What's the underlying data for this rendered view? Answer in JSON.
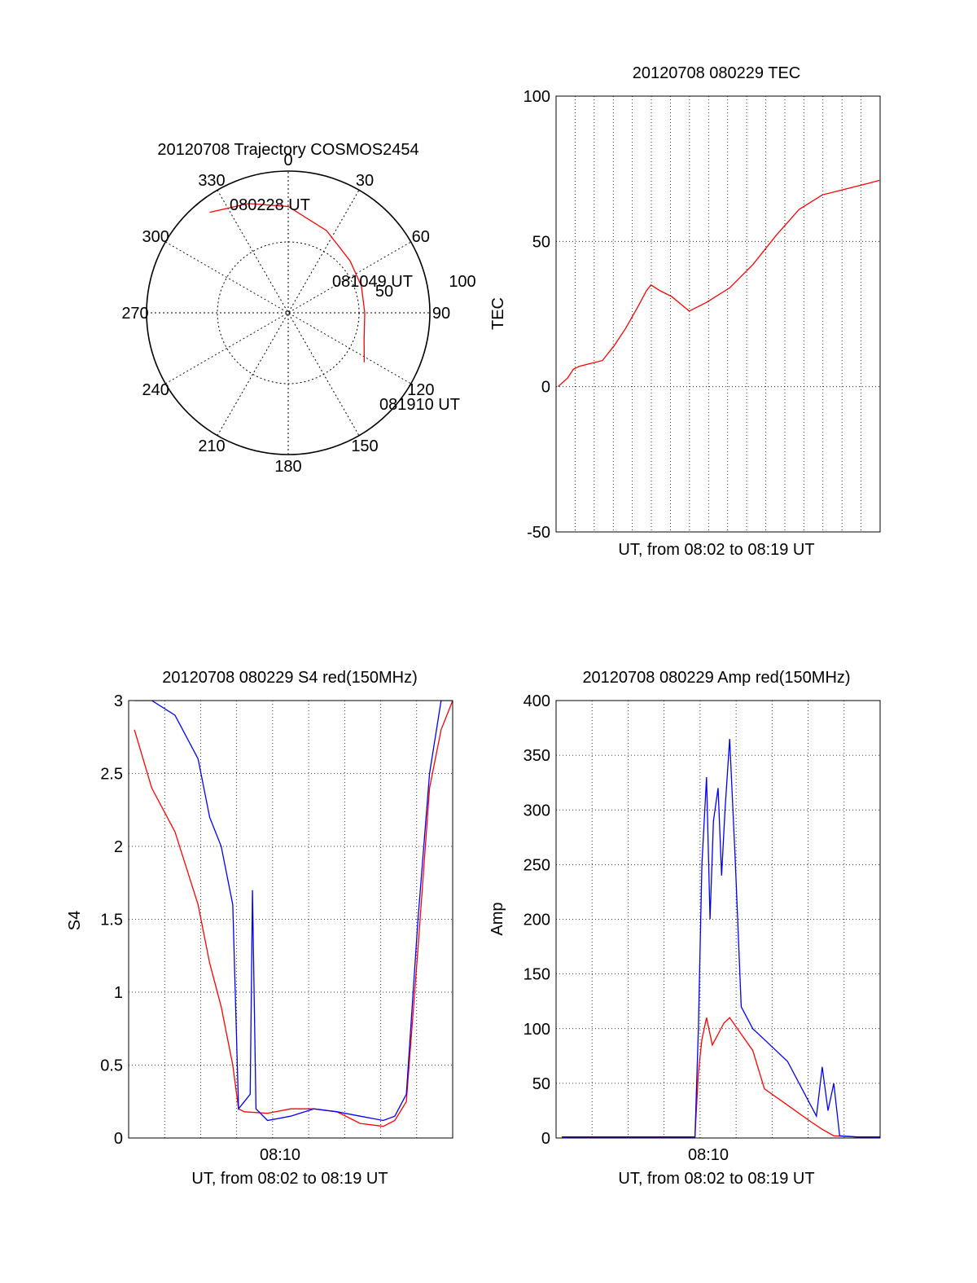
{
  "colors": {
    "red": "#ff0000",
    "blue": "#0000ff",
    "axis": "#000000",
    "grid": "#000000",
    "background": "#ffffff"
  },
  "chart_data": [
    {
      "type": "polar",
      "title": "20120708 Trajectory COSMOS2454",
      "angle_ticks": [
        "0",
        "30",
        "60",
        "90",
        "120",
        "150",
        "180",
        "210",
        "240",
        "270",
        "300",
        "330"
      ],
      "radius_ticks": [
        "50",
        "100"
      ],
      "grid": true,
      "trajectory": {
        "color": "red",
        "points": [
          [
            -38,
            90
          ],
          [
            -20,
            82
          ],
          [
            0,
            75
          ],
          [
            25,
            64
          ],
          [
            50,
            57
          ],
          [
            70,
            55
          ],
          [
            90,
            54
          ],
          [
            110,
            57
          ],
          [
            123,
            64
          ]
        ]
      },
      "annotations": [
        "080228 UT",
        "081049 UT",
        "081910 UT"
      ]
    },
    {
      "type": "line",
      "title": "20120708 080229 TEC",
      "xlabel": "UT, from 08:02 to 08:19 UT",
      "ylabel": "TEC",
      "xlim": [
        8.04,
        8.32
      ],
      "ylim": [
        -50,
        100
      ],
      "yticks": [
        "-50",
        "0",
        "50",
        "100"
      ],
      "grid": true,
      "series": [
        {
          "color": "red",
          "x": [
            8.0417,
            8.05,
            8.055,
            8.06,
            8.07,
            8.08,
            8.09,
            8.1,
            8.11,
            8.118,
            8.122,
            8.13,
            8.14,
            8.155,
            8.17,
            8.19,
            8.21,
            8.23,
            8.25,
            8.27,
            8.29,
            8.31,
            8.3194
          ],
          "y": [
            0,
            3,
            6,
            7,
            8,
            9,
            14,
            20,
            27,
            33,
            35,
            33,
            31,
            26,
            29,
            34,
            42,
            52,
            61,
            66,
            68,
            70,
            71
          ]
        }
      ]
    },
    {
      "type": "line",
      "title": "20120708 080229 S4 red(150MHz)",
      "xlabel": "UT, from 08:02 to 08:19 UT",
      "ylabel": "S4",
      "xlim": [
        8.04,
        8.32
      ],
      "ylim": [
        0,
        3
      ],
      "yticks": [
        "0",
        "0.5",
        "1",
        "1.5",
        "2",
        "2.5",
        "3"
      ],
      "xticks": [
        "08:10"
      ],
      "grid": true,
      "series": [
        {
          "color": "red",
          "x": [
            8.045,
            8.06,
            8.08,
            8.1,
            8.11,
            8.12,
            8.13,
            8.135,
            8.14,
            8.16,
            8.18,
            8.2,
            8.22,
            8.24,
            8.26,
            8.27,
            8.28,
            8.29,
            8.3,
            8.31,
            8.32
          ],
          "y": [
            2.8,
            2.4,
            2.1,
            1.6,
            1.2,
            0.9,
            0.5,
            0.2,
            0.18,
            0.17,
            0.2,
            0.2,
            0.18,
            0.1,
            0.08,
            0.12,
            0.25,
            1.3,
            2.4,
            2.8,
            3
          ]
        },
        {
          "color": "blue",
          "x": [
            8.045,
            8.06,
            8.08,
            8.1,
            8.11,
            8.12,
            8.13,
            8.135,
            8.14,
            8.145,
            8.147,
            8.15,
            8.16,
            8.18,
            8.2,
            8.22,
            8.24,
            8.26,
            8.27,
            8.28,
            8.29,
            8.3,
            8.31,
            8.32
          ],
          "y": [
            3,
            3,
            2.9,
            2.6,
            2.2,
            2,
            1.6,
            0.2,
            0.25,
            0.3,
            1.7,
            0.2,
            0.12,
            0.15,
            0.2,
            0.18,
            0.15,
            0.12,
            0.15,
            0.3,
            1.5,
            2.5,
            3,
            3
          ]
        }
      ]
    },
    {
      "type": "line",
      "title": "20120708 080229 Amp red(150MHz)",
      "xlabel": "UT, from 08:02 to 08:19 UT",
      "ylabel": "Amp",
      "xlim": [
        8.04,
        8.32
      ],
      "ylim": [
        0,
        400
      ],
      "yticks": [
        "0",
        "50",
        "100",
        "150",
        "200",
        "250",
        "300",
        "350",
        "400"
      ],
      "xticks": [
        "08:10"
      ],
      "grid": true,
      "series": [
        {
          "color": "red",
          "x": [
            8.045,
            8.1,
            8.16,
            8.163,
            8.166,
            8.17,
            8.175,
            8.18,
            8.185,
            8.19,
            8.2,
            8.21,
            8.22,
            8.24,
            8.26,
            8.27,
            8.28,
            8.3,
            8.32
          ],
          "y": [
            1,
            1,
            1,
            60,
            90,
            110,
            85,
            95,
            105,
            110,
            95,
            80,
            45,
            30,
            15,
            8,
            2,
            1,
            1
          ]
        },
        {
          "color": "blue",
          "x": [
            8.045,
            8.1,
            8.16,
            8.163,
            8.166,
            8.17,
            8.173,
            8.176,
            8.18,
            8.183,
            8.186,
            8.19,
            8.195,
            8.2,
            8.21,
            8.22,
            8.24,
            8.255,
            8.265,
            8.27,
            8.275,
            8.28,
            8.285,
            8.3,
            8.32
          ],
          "y": [
            1,
            1,
            1,
            100,
            250,
            330,
            200,
            290,
            320,
            240,
            300,
            365,
            250,
            120,
            100,
            90,
            70,
            40,
            20,
            65,
            25,
            50,
            2,
            1,
            1
          ]
        }
      ]
    }
  ]
}
